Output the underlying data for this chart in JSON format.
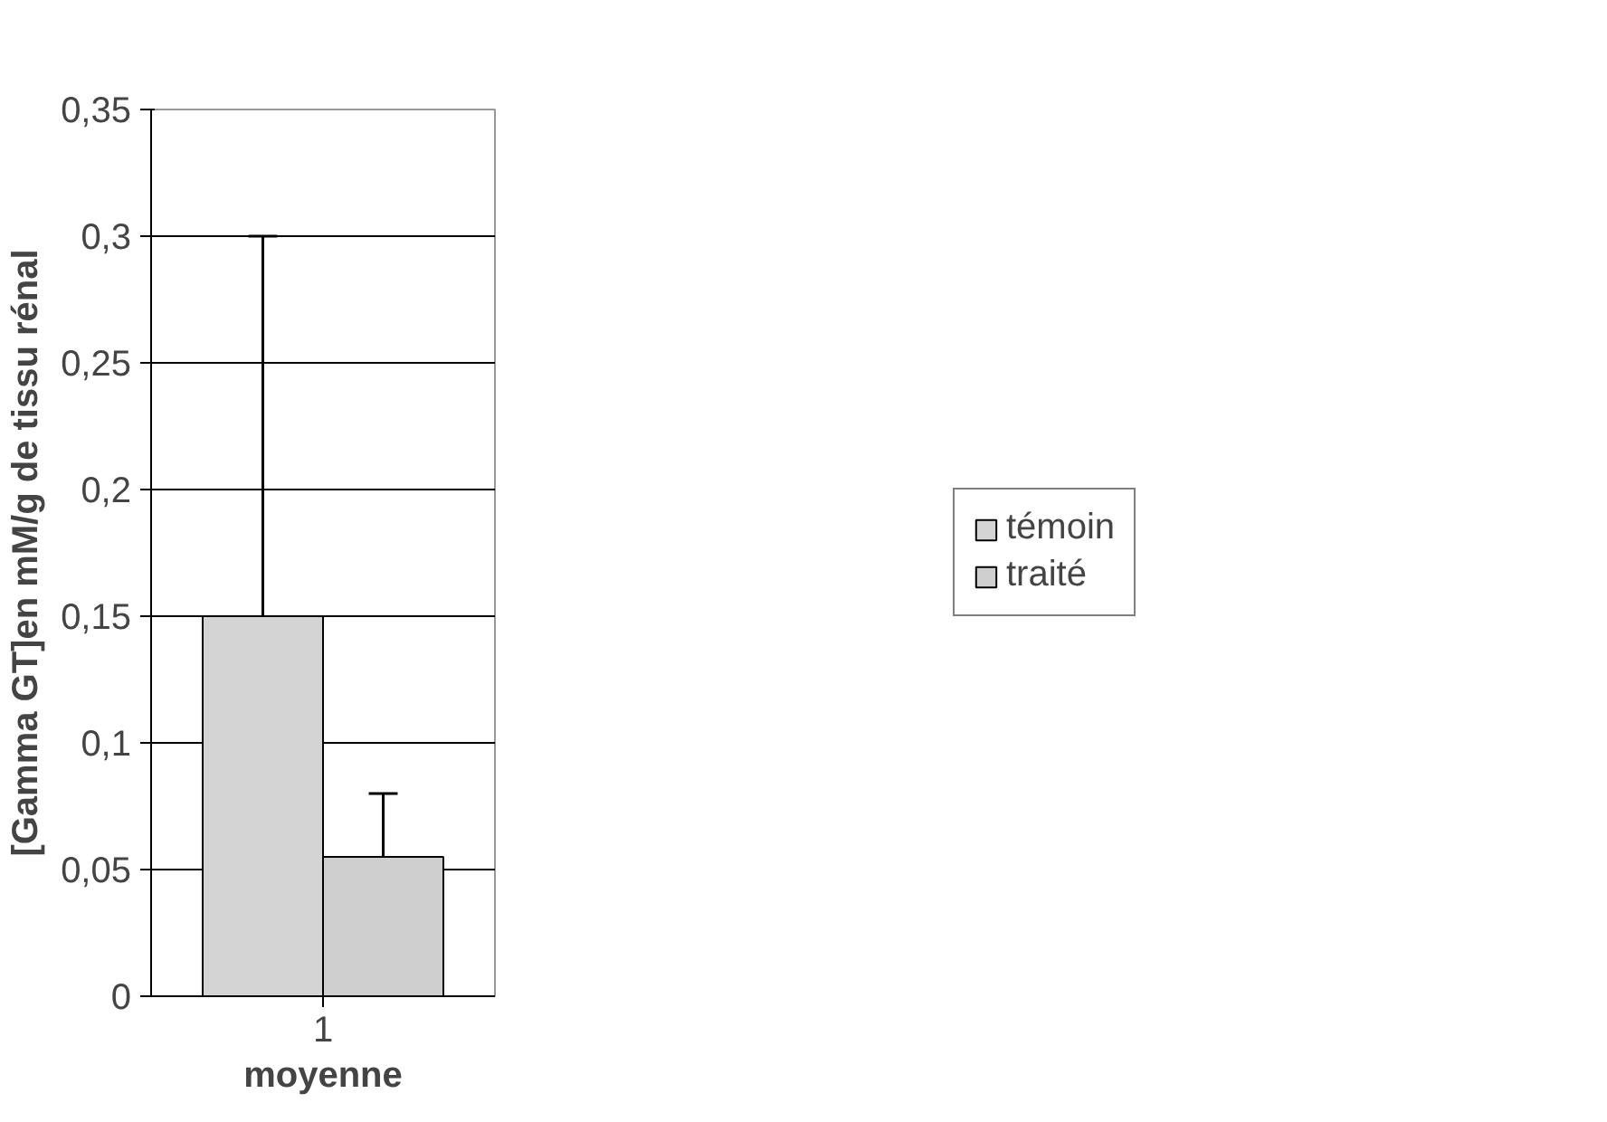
{
  "chart_data": {
    "type": "bar",
    "xlabel": "moyenne",
    "ylabel": "[Gamma GT]en mM/g de tissu rénal",
    "categories": [
      "1"
    ],
    "series": [
      {
        "name": "témoin",
        "color": "#d4d4d4",
        "values": [
          0.15
        ],
        "errors": [
          [
            0.15,
            0.3
          ]
        ]
      },
      {
        "name": "traité",
        "color": "#cfcfcf",
        "values": [
          0.055
        ],
        "errors": [
          [
            0.055,
            0.08
          ]
        ]
      }
    ],
    "ylim": [
      0,
      0.35
    ],
    "yticks": [
      {
        "value": 0,
        "label": "0"
      },
      {
        "value": 0.05,
        "label": "0,05"
      },
      {
        "value": 0.1,
        "label": "0,1"
      },
      {
        "value": 0.15,
        "label": "0,15"
      },
      {
        "value": 0.2,
        "label": "0,2"
      },
      {
        "value": 0.25,
        "label": "0,25"
      },
      {
        "value": 0.3,
        "label": "0,3"
      },
      {
        "value": 0.35,
        "label": "0,35"
      }
    ],
    "grid": "y",
    "legend": "right"
  }
}
